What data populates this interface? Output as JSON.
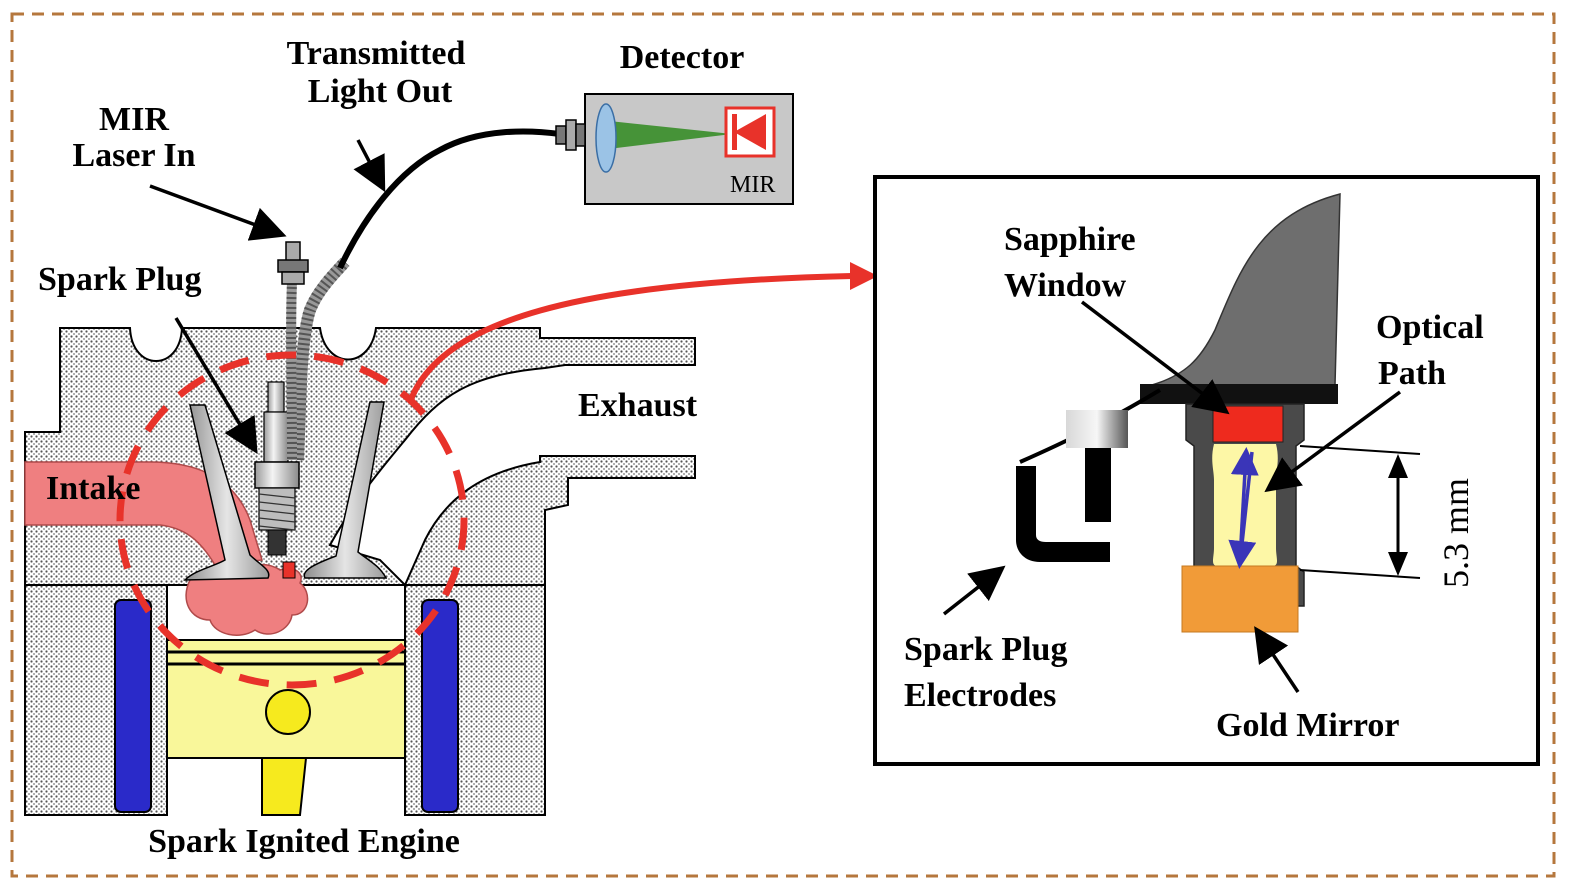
{
  "labels": {
    "mir_laser_line1": "MIR",
    "mir_laser_line2": "Laser In",
    "transmitted_line1": "Transmitted",
    "transmitted_line2": "Light Out",
    "detector": "Detector",
    "detector_box_label": "MIR",
    "spark_plug": "Spark Plug",
    "exhaust": "Exhaust",
    "intake": "Intake",
    "engine_caption": "Spark Ignited Engine",
    "sapphire_line1": "Sapphire",
    "sapphire_line2": "Window",
    "optical_line1": "Optical",
    "optical_line2": "Path",
    "dimension": "5.3 mm",
    "electrodes_line1": "Spark Plug",
    "electrodes_line2": "Electrodes",
    "gold_mirror": "Gold Mirror"
  },
  "colors": {
    "frame_dashed": "#b5773d",
    "callout_red": "#e8322a",
    "intake_pink": "#ef7f80",
    "cylinder_blue": "#2a2ac9",
    "piston_yellow": "#f9f79a",
    "rod_yellow": "#f6ea1e",
    "window_red": "#ee2a1e",
    "mirror_orange": "#f19b38",
    "path_yellow": "#fdf7a6",
    "optical_blue": "#3a35b8",
    "detector_gray": "#c8c8c8",
    "housing_gray": "#6e6e6e",
    "beam_green": "#2f8a1e"
  }
}
